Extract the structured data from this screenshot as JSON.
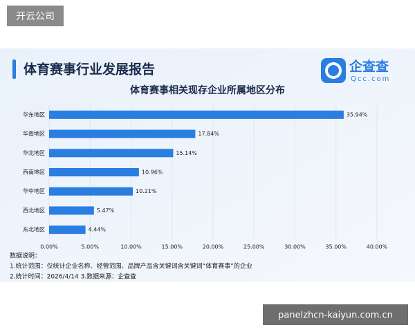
{
  "corner_label": "开云公司",
  "report_title": "体育赛事行业发展报告",
  "logo": {
    "name": "企查查",
    "domain": "Qcc.com"
  },
  "notes": [
    "数据说明：",
    "1.统计范围：仅统计企业名称、经营范围、品牌产品含关键词含关键词“体育赛事”的企业",
    "2.统计时间：2026/4/14 3.数据来源：企查查"
  ],
  "footer_label": "panelzhcn-kaiyun.com.cn",
  "chart_data": {
    "type": "bar",
    "orientation": "horizontal",
    "title": "体育赛事相关现存企业所属地区分布",
    "categories": [
      "华东地区",
      "华南地区",
      "华北地区",
      "西南地区",
      "华中地区",
      "西北地区",
      "东北地区"
    ],
    "values": [
      35.94,
      17.84,
      15.14,
      10.96,
      10.21,
      5.47,
      4.44
    ],
    "value_labels": [
      "35.94%",
      "17.84%",
      "15.14%",
      "10.96%",
      "10.21%",
      "5.47%",
      "4.44%"
    ],
    "color": "#2a7de1",
    "xlim": [
      0,
      40
    ],
    "xticks": [
      {
        "value": 0,
        "label": "0.00%"
      },
      {
        "value": 5,
        "label": "5.00%"
      },
      {
        "value": 10,
        "label": "10.00%"
      },
      {
        "value": 15,
        "label": "15.00%"
      },
      {
        "value": 20,
        "label": "20.00%"
      },
      {
        "value": 25,
        "label": "25.00%"
      },
      {
        "value": 30,
        "label": "30.00%"
      },
      {
        "value": 35,
        "label": "35.00%"
      },
      {
        "value": 40,
        "label": "40.00%"
      }
    ],
    "grid": true
  }
}
